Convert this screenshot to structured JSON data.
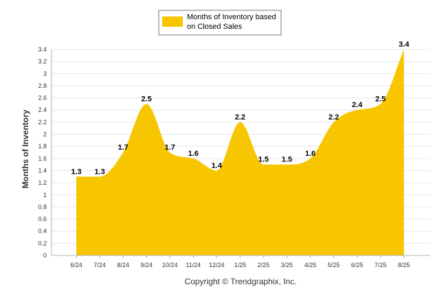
{
  "chart_data": {
    "type": "area",
    "categories": [
      "6/24",
      "7/24",
      "8/24",
      "9/24",
      "10/24",
      "11/24",
      "12/24",
      "1/25",
      "2/25",
      "3/25",
      "4/25",
      "5/25",
      "6/25",
      "7/25",
      "8/25"
    ],
    "series": [
      {
        "name": "Months of Inventory based on Closed Sales",
        "values": [
          1.3,
          1.3,
          1.7,
          2.5,
          1.7,
          1.6,
          1.4,
          2.2,
          1.5,
          1.5,
          1.6,
          2.2,
          2.4,
          2.5,
          3.4
        ]
      }
    ],
    "data_labels": [
      "1.3",
      "1.3",
      "1.7",
      "2.5",
      "1.7",
      "1.6",
      "1.4",
      "2.2",
      "1.5",
      "1.5",
      "1.6",
      "2.2",
      "2.4",
      "2.5",
      "3.4"
    ],
    "y_ticks": [
      "0",
      "0.2",
      "0.4",
      "0.6",
      "0.8",
      "1",
      "1.2",
      "1.4",
      "1.6",
      "1.8",
      "2",
      "2.2",
      "2.4",
      "2.6",
      "2.8",
      "3",
      "3.2",
      "3.4"
    ],
    "ylim": [
      0,
      3.4
    ],
    "ylabel": "Months of Inventory",
    "xlabel": "",
    "grid": true,
    "legend_position": "top-center",
    "legend_lines": [
      "Months of Inventory based",
      "on Closed Sales"
    ],
    "footer": "Copyright © Trendgraphix, Inc.",
    "colors": {
      "fill": "#f7c600",
      "grid": "#e6e6e6",
      "axis": "#b0b0b0"
    }
  }
}
